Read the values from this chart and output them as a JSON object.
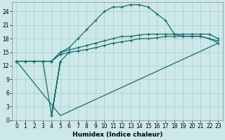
{
  "xlabel": "Humidex (Indice chaleur)",
  "bg_color": "#cce8e8",
  "grid_color": "#aacccc",
  "line_color": "#1a6b6b",
  "xlim": [
    -0.5,
    23.5
  ],
  "ylim": [
    0,
    26
  ],
  "xticks": [
    0,
    1,
    2,
    3,
    4,
    5,
    6,
    7,
    8,
    9,
    10,
    11,
    12,
    13,
    14,
    15,
    16,
    17,
    18,
    19,
    20,
    21,
    22,
    23
  ],
  "yticks": [
    0,
    3,
    6,
    9,
    12,
    15,
    18,
    21,
    24
  ],
  "curve_upper_x": [
    0,
    1,
    2,
    3,
    4,
    5,
    6,
    7,
    8,
    9,
    10,
    11,
    12,
    13,
    14,
    15,
    16,
    17,
    18,
    19,
    20,
    21,
    22,
    23
  ],
  "curve_upper_y": [
    13,
    13,
    13,
    13,
    13,
    15,
    16,
    18,
    20,
    22,
    24,
    25,
    25,
    25.5,
    25.5,
    25,
    23.5,
    22,
    19,
    18.5,
    18.5,
    18.5,
    18,
    17
  ],
  "curve_mid_upper_x": [
    0,
    1,
    2,
    3,
    4,
    5,
    6,
    7,
    8,
    9,
    10,
    11,
    12,
    13,
    14,
    15,
    16,
    17,
    18,
    19,
    20,
    21,
    22,
    23
  ],
  "curve_mid_upper_y": [
    13,
    13,
    13,
    13,
    13,
    15,
    15.5,
    16,
    16.5,
    17,
    17.5,
    18,
    18.5,
    18.5,
    18.8,
    19,
    19,
    19,
    19,
    19,
    19,
    19,
    19,
    18
  ],
  "curve_mid_lower_x": [
    0,
    1,
    2,
    3,
    4,
    5,
    6,
    7,
    8,
    9,
    10,
    11,
    12,
    13,
    14,
    15,
    16,
    17,
    18,
    19,
    20,
    21,
    22,
    23
  ],
  "curve_mid_lower_y": [
    13,
    13,
    13,
    13,
    13,
    14.5,
    15,
    15.3,
    15.6,
    16,
    16.5,
    17,
    17.3,
    17.6,
    18,
    18,
    18.2,
    18.5,
    18.5,
    18.5,
    18.5,
    18.5,
    18,
    17.5
  ],
  "spike_x": [
    3,
    4,
    5,
    4,
    5,
    6
  ],
  "spike_y": [
    13,
    1,
    13,
    1,
    13,
    15
  ],
  "lower_line_x": [
    0,
    5,
    23
  ],
  "lower_line_y": [
    13,
    1,
    17
  ]
}
